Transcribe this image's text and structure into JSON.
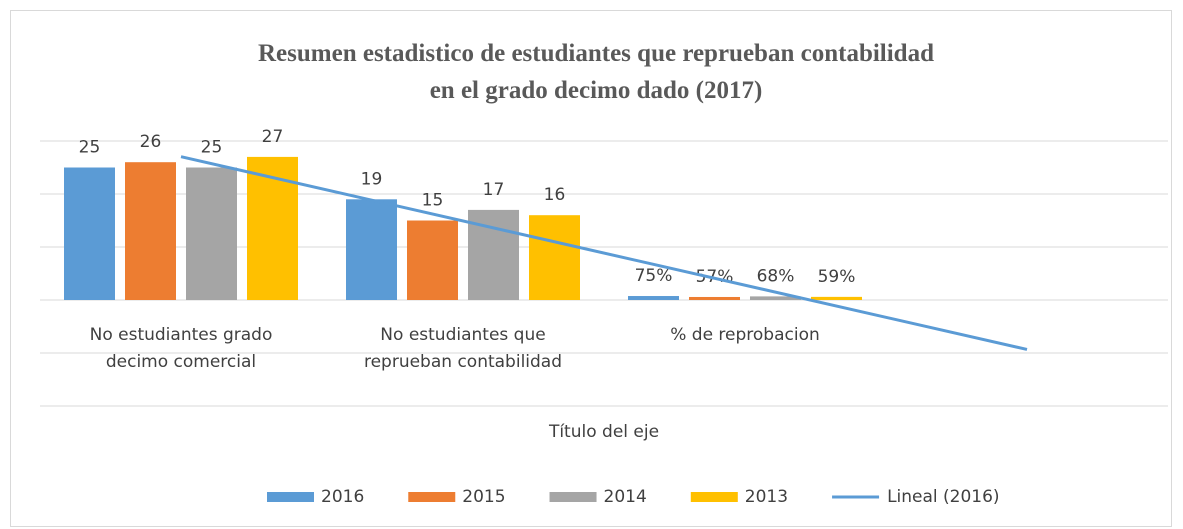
{
  "chart_data": {
    "type": "bar",
    "title": "Resumen estadistico de estudiantes que reprueban contabilidad en el grado decimo dado (2017)",
    "x_label": "Título del eje",
    "categories": [
      "No estudiantes grado\ndecimo comercial",
      "No estudiantes que\nreprueban contabilidad",
      "% de reprobacion"
    ],
    "series": [
      {
        "name": "2016",
        "color": "#5b9bd5",
        "values": [
          25,
          19,
          0.75
        ],
        "value_labels": [
          "25",
          "19",
          "75%"
        ]
      },
      {
        "name": "2015",
        "color": "#ed7d31",
        "values": [
          26,
          15,
          0.57
        ],
        "value_labels": [
          "26",
          "15",
          "57%"
        ]
      },
      {
        "name": "2014",
        "color": "#a5a5a5",
        "values": [
          25,
          17,
          0.68
        ],
        "value_labels": [
          "25",
          "17",
          "68%"
        ]
      },
      {
        "name": "2013",
        "color": "#ffc000",
        "values": [
          27,
          16,
          0.59
        ],
        "value_labels": [
          "27",
          "16",
          "59%"
        ]
      }
    ],
    "trendline": {
      "name": "Lineal (2016)",
      "series": 0,
      "type": "linear",
      "forward": 1,
      "color": "#5b9bd5"
    },
    "ylim": [
      -20,
      30
    ],
    "yticks": [
      -20,
      -10,
      0,
      10,
      20,
      30
    ],
    "grid": true,
    "legend": "bottom"
  }
}
